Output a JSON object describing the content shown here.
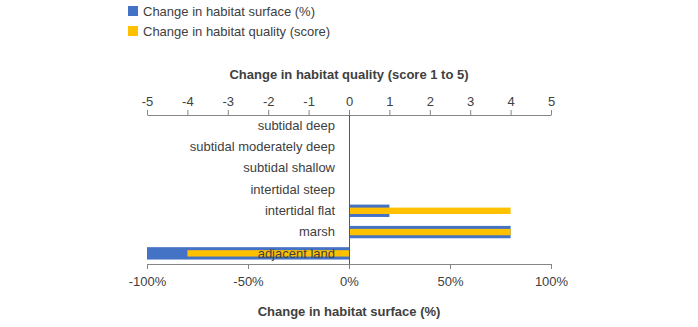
{
  "chart_data": {
    "type": "bar",
    "orientation": "horizontal",
    "x_label": "Change in habitat surface (%)",
    "x2_label": "Change in habitat quality (score 1 to 5)",
    "categories": [
      "subtidal deep",
      "subtidal moderately deep",
      "subtidal shallow",
      "intertidal steep",
      "intertidal flat",
      "marsh",
      "adjacent land"
    ],
    "xlim": [
      -100,
      100
    ],
    "xticks": [
      {
        "value": -100,
        "label": "-100%"
      },
      {
        "value": -50,
        "label": "-50%"
      },
      {
        "value": 0,
        "label": "0%"
      },
      {
        "value": 50,
        "label": "50%"
      },
      {
        "value": 100,
        "label": "100%"
      }
    ],
    "x2lim": [
      -5,
      5
    ],
    "x2ticks": [
      -5,
      -4,
      -3,
      -2,
      -1,
      0,
      1,
      2,
      3,
      4,
      5
    ],
    "series": [
      {
        "name": "Change in habitat surface (%)",
        "color": "#4472c4",
        "values": [
          0,
          0,
          0,
          0,
          20,
          80,
          -100
        ]
      },
      {
        "name": "Change in habitat quality (score)",
        "color": "#ffc000",
        "values": [
          0,
          0,
          0,
          0,
          4,
          4,
          -4
        ],
        "axis": "x2"
      }
    ],
    "legend": "top-left"
  }
}
